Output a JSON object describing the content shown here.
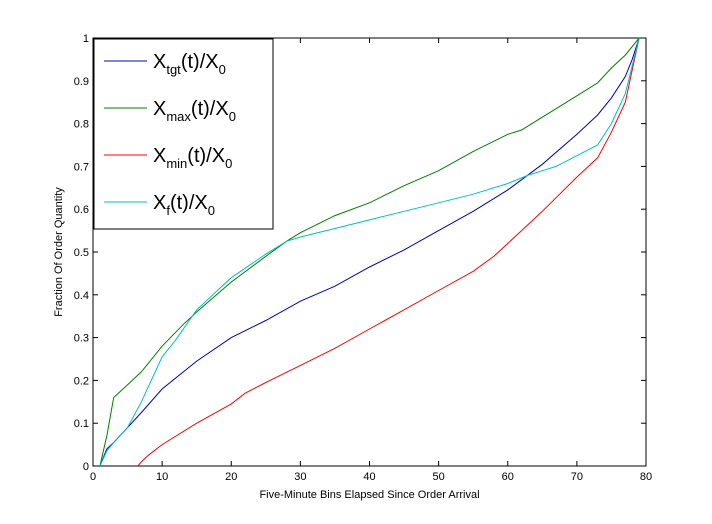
{
  "chart_data": {
    "type": "line",
    "title": "",
    "xlabel": "Five-Minute Bins Elapsed Since Order Arrival",
    "ylabel": "Fraction Of Order Quantity",
    "xlim": [
      0,
      80
    ],
    "ylim": [
      0,
      1
    ],
    "xticks": [
      0,
      10,
      20,
      30,
      40,
      50,
      60,
      70,
      80
    ],
    "yticks": [
      0,
      0.1,
      0.2,
      0.3,
      0.4,
      0.5,
      0.6,
      0.7,
      0.8,
      0.9,
      1
    ],
    "xtick_labels": [
      "0",
      "10",
      "20",
      "30",
      "40",
      "50",
      "60",
      "70",
      "80"
    ],
    "ytick_labels": [
      "0",
      "0.1",
      "0.2",
      "0.3",
      "0.4",
      "0.5",
      "0.6",
      "0.7",
      "0.8",
      "0.9",
      "1"
    ],
    "grid": false,
    "legend_position": "top-left",
    "series": [
      {
        "name": "X_tgt(t)/X_0",
        "legend_parts": [
          {
            "t": "X",
            "s": ""
          },
          {
            "t": "tgt",
            "s": "sub"
          },
          {
            "t": "(t)/X",
            "s": ""
          },
          {
            "t": "0",
            "s": "sub"
          }
        ],
        "color": "#0000bf",
        "x": [
          1,
          2,
          3,
          5,
          7,
          10,
          15,
          20,
          25,
          30,
          35,
          40,
          45,
          50,
          55,
          60,
          65,
          70,
          73,
          75,
          77,
          78,
          79
        ],
        "y": [
          0,
          0.04,
          0.055,
          0.09,
          0.125,
          0.18,
          0.245,
          0.3,
          0.34,
          0.385,
          0.42,
          0.465,
          0.505,
          0.55,
          0.595,
          0.645,
          0.705,
          0.775,
          0.82,
          0.86,
          0.91,
          0.95,
          1
        ]
      },
      {
        "name": "X_max(t)/X_0",
        "legend_parts": [
          {
            "t": "X",
            "s": ""
          },
          {
            "t": "max",
            "s": "sub"
          },
          {
            "t": "(t)/X",
            "s": ""
          },
          {
            "t": "0",
            "s": "sub"
          }
        ],
        "color": "#007f00",
        "x": [
          1,
          2,
          3,
          5,
          7,
          10,
          13,
          15,
          20,
          25,
          28,
          30,
          35,
          40,
          45,
          50,
          55,
          60,
          62,
          65,
          70,
          73,
          75,
          77,
          79
        ],
        "y": [
          0,
          0.07,
          0.16,
          0.19,
          0.22,
          0.28,
          0.33,
          0.36,
          0.43,
          0.49,
          0.525,
          0.545,
          0.585,
          0.615,
          0.655,
          0.69,
          0.735,
          0.775,
          0.785,
          0.815,
          0.865,
          0.895,
          0.93,
          0.96,
          1
        ]
      },
      {
        "name": "X_min(t)/X_0",
        "legend_parts": [
          {
            "t": "X",
            "s": ""
          },
          {
            "t": "min",
            "s": "sub"
          },
          {
            "t": "(t)/X",
            "s": ""
          },
          {
            "t": "0",
            "s": "sub"
          }
        ],
        "color": "#ff0000",
        "x": [
          6.5,
          7,
          8,
          10,
          15,
          20,
          22,
          25,
          30,
          35,
          40,
          45,
          50,
          55,
          58,
          60,
          62,
          65,
          70,
          73,
          75,
          77,
          79
        ],
        "y": [
          0,
          0.01,
          0.025,
          0.05,
          0.1,
          0.145,
          0.17,
          0.195,
          0.235,
          0.275,
          0.32,
          0.365,
          0.41,
          0.455,
          0.49,
          0.52,
          0.55,
          0.595,
          0.675,
          0.72,
          0.78,
          0.85,
          1
        ]
      },
      {
        "name": "X_f(t)/X_0",
        "legend_parts": [
          {
            "t": "X",
            "s": ""
          },
          {
            "t": "f",
            "s": "sub"
          },
          {
            "t": "(t)/X",
            "s": ""
          },
          {
            "t": "0",
            "s": "sub"
          }
        ],
        "color": "#00bfbf",
        "x": [
          1,
          2,
          3,
          5,
          7,
          10,
          12,
          15,
          18,
          20,
          25,
          28,
          30,
          35,
          40,
          45,
          50,
          55,
          60,
          63,
          65,
          67,
          70,
          73,
          75,
          77,
          79
        ],
        "y": [
          0,
          0.035,
          0.055,
          0.09,
          0.15,
          0.255,
          0.295,
          0.365,
          0.41,
          0.44,
          0.495,
          0.525,
          0.535,
          0.555,
          0.575,
          0.595,
          0.615,
          0.635,
          0.66,
          0.68,
          0.69,
          0.7,
          0.725,
          0.75,
          0.8,
          0.87,
          1
        ]
      }
    ]
  }
}
